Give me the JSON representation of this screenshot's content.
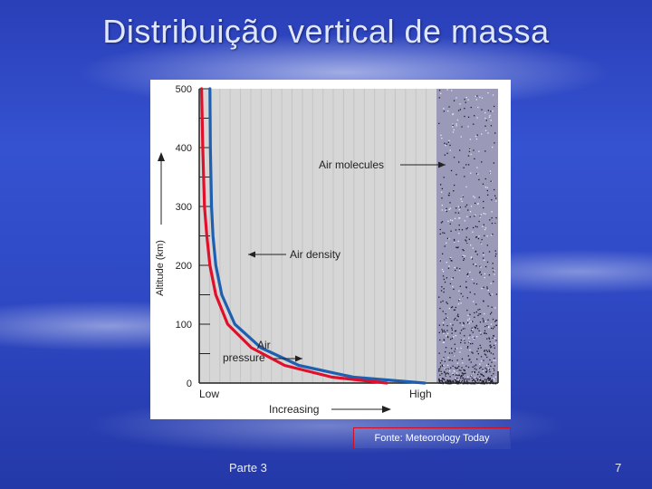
{
  "slide": {
    "title": "Distribuição vertical de massa",
    "source": "Fonte: Meteorology Today",
    "footer_left": "Parte 3",
    "page_number": "7"
  },
  "chart_data": {
    "type": "line",
    "ylabel": "Altitude (km)",
    "xlabel": "Increasing",
    "x_low_label": "Low",
    "x_high_label": "High",
    "ylim": [
      0,
      500
    ],
    "yticks": [
      0,
      100,
      200,
      300,
      400,
      500
    ],
    "series": [
      {
        "name": "Air density",
        "color": "#1f5fb0",
        "points": [
          [
            0.45,
            500
          ],
          [
            0.47,
            400
          ],
          [
            0.52,
            300
          ],
          [
            0.58,
            250
          ],
          [
            0.7,
            200
          ],
          [
            0.95,
            150
          ],
          [
            1.5,
            100
          ],
          [
            2.6,
            60
          ],
          [
            4.2,
            30
          ],
          [
            6.5,
            10
          ],
          [
            9.5,
            0
          ]
        ]
      },
      {
        "name": "Air pressure",
        "color": "#e0102a",
        "points": [
          [
            0.1,
            500
          ],
          [
            0.15,
            400
          ],
          [
            0.22,
            300
          ],
          [
            0.32,
            250
          ],
          [
            0.45,
            200
          ],
          [
            0.7,
            150
          ],
          [
            1.2,
            100
          ],
          [
            2.2,
            60
          ],
          [
            3.6,
            30
          ],
          [
            5.6,
            10
          ],
          [
            7.9,
            0
          ]
        ]
      }
    ],
    "annotations": [
      {
        "text": "Air molecules"
      },
      {
        "text": "Air density"
      },
      {
        "text": "Air pressure"
      }
    ]
  }
}
